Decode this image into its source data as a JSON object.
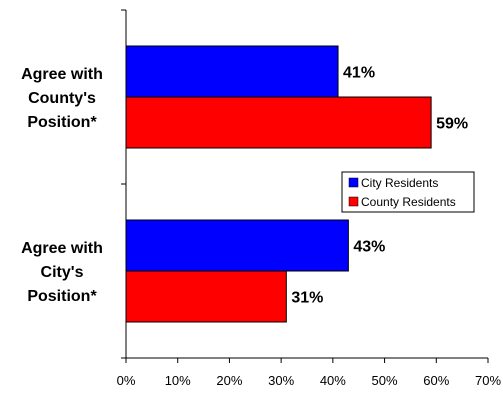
{
  "chart_data": {
    "type": "bar",
    "orientation": "horizontal",
    "categories": [
      "Agree with County's Position*",
      "Agree with City's Position*"
    ],
    "category_label_lines": [
      [
        "Agree with",
        "County's",
        "Position*"
      ],
      [
        "Agree with",
        "City's",
        "Position*"
      ]
    ],
    "series": [
      {
        "name": "City Residents",
        "color": "#0000ff",
        "values": [
          41,
          43
        ],
        "labels": [
          "41%",
          "43%"
        ]
      },
      {
        "name": "County Residents",
        "color": "#ff0000",
        "values": [
          59,
          31
        ],
        "labels": [
          "59%",
          "31%"
        ]
      }
    ],
    "xlim": [
      0,
      70
    ],
    "xticks": [
      0,
      10,
      20,
      30,
      40,
      50,
      60,
      70
    ],
    "xtick_labels": [
      "0%",
      "10%",
      "20%",
      "30%",
      "40%",
      "50%",
      "60%",
      "70%"
    ],
    "grid": false,
    "legend_position": "right-middle",
    "title": "",
    "xlabel": "",
    "ylabel": ""
  }
}
